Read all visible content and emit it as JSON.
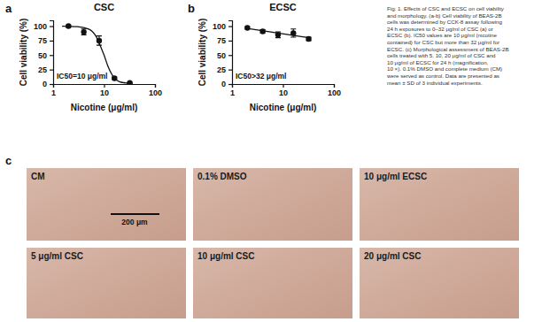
{
  "panel_labels": [
    "a",
    "b",
    "c"
  ],
  "chart_data": [
    {
      "type": "scatter",
      "title": "CSC",
      "x_label": "Nicotine (μg/ml)",
      "y_label": "Cell viability (%)",
      "x": [
        2,
        4,
        8,
        16,
        32
      ],
      "values": [
        100,
        90,
        75,
        10,
        2
      ],
      "errors": [
        2,
        5,
        8,
        2,
        1
      ],
      "fit": {
        "x": [
          1.5,
          3,
          5,
          7,
          9,
          10,
          12,
          16,
          20,
          32
        ],
        "values": [
          100,
          99,
          95,
          82,
          60,
          50,
          30,
          10,
          4,
          1
        ]
      },
      "xlim": [
        1,
        100
      ],
      "ylim": [
        0,
        110
      ],
      "xticks": [
        1,
        10,
        100
      ],
      "yticks": [
        0,
        25,
        50,
        75,
        100
      ],
      "log": "x",
      "marker": "circle",
      "color": "#111111",
      "annotations": [
        "IC50=10 μg/ml"
      ]
    },
    {
      "type": "scatter",
      "title": "ECSC",
      "x_label": "Nicotine (μg/ml)",
      "y_label": "Cell viability (%)",
      "x": [
        2,
        4,
        8,
        16,
        32
      ],
      "values": [
        97,
        91,
        85,
        88,
        78
      ],
      "errors": [
        2,
        3,
        5,
        7,
        3
      ],
      "fit": {
        "x": [
          2,
          32
        ],
        "values": [
          96,
          80
        ]
      },
      "xlim": [
        1,
        100
      ],
      "ylim": [
        0,
        110
      ],
      "xticks": [
        1,
        10,
        100
      ],
      "yticks": [
        0,
        25,
        50,
        75,
        100
      ],
      "log": "x",
      "marker": "circle",
      "color": "#111111",
      "annotations": [
        "IC50>32 μg/ml"
      ]
    }
  ],
  "caption": [
    "Fig. 1. Effects of CSC and ECSC on cell viability",
    "and morphology. (a-b) Cell viability of BEAS-2B",
    "cells was determined by CCK-8 assay following",
    "24 h exposures to 0–32 μg/ml of CSC (a) or",
    "ECSC (b). IC50 values are 10 μg/ml (nicotine",
    "contained) for CSC but more than 32 μg/ml for",
    "ECSC. (c) Morphological assessment of BEAS-2B",
    "cells treated with 5, 10, 20 μg/ml of CSC and",
    "10 μg/ml of ECSC for 24 h (magnification,",
    "10 ×). 0.1% DMSO and complete medium (CM)",
    "were served as control. Data are presented as",
    "mean ± SD of 3 individual experiments."
  ],
  "micrographs": {
    "images": [
      "CM",
      "0.1% DMSO",
      "10 μg/ml ECSC",
      "5 μg/ml CSC",
      "10 μg/ml CSC",
      "20 μg/ml CSC"
    ],
    "scale_bar": "200 μm"
  }
}
